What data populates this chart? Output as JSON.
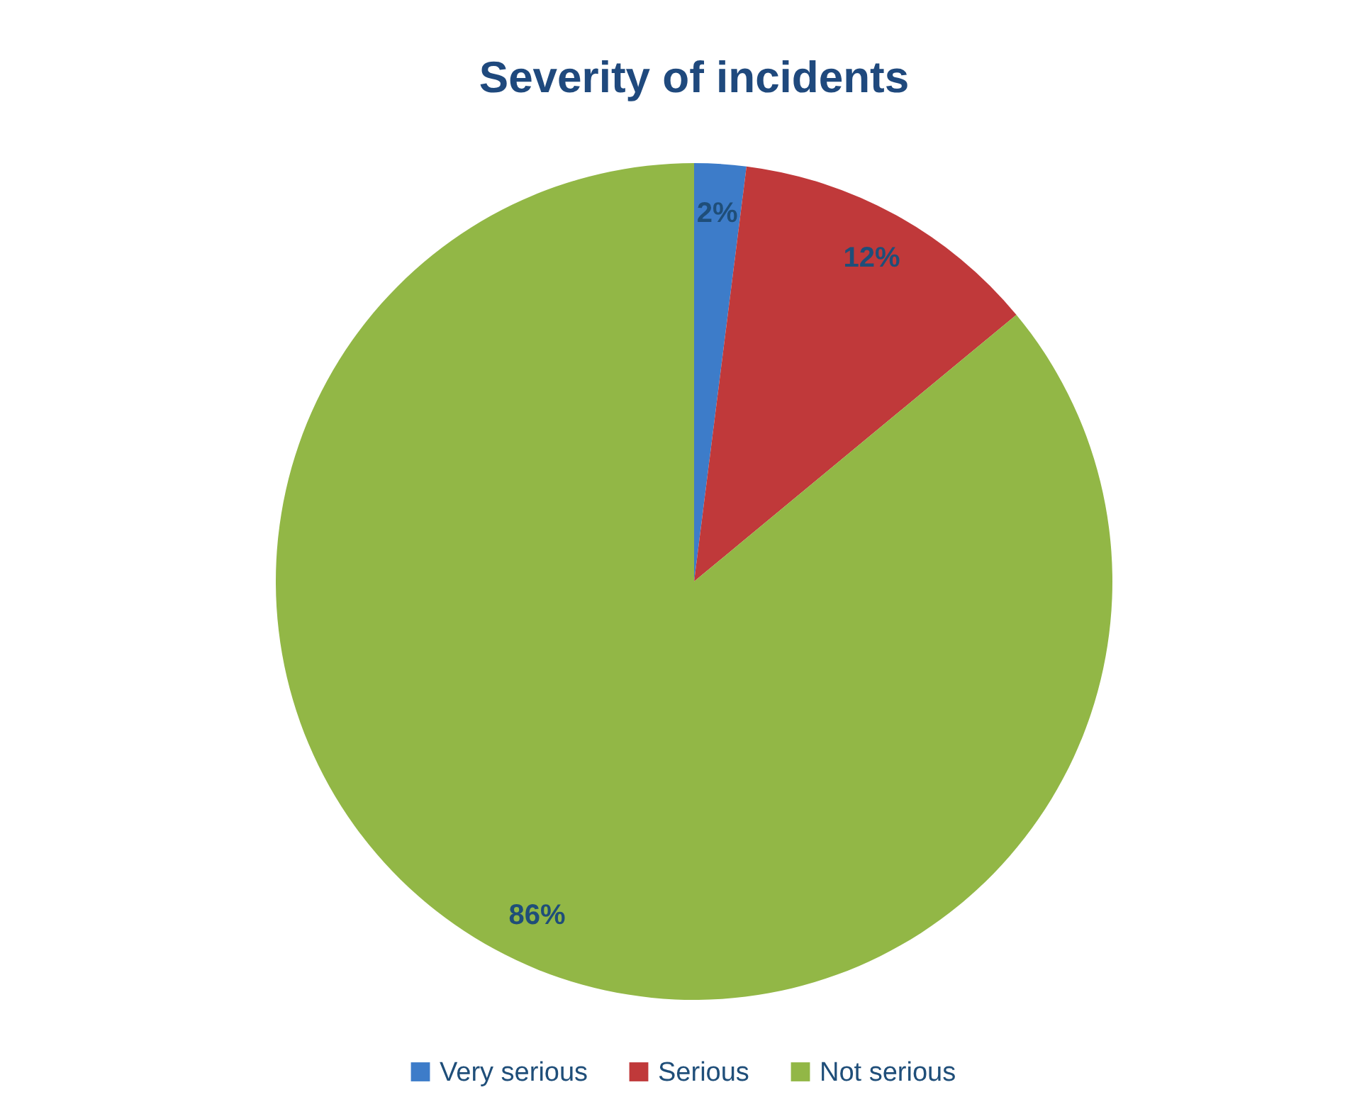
{
  "chart_data": {
    "type": "pie",
    "title": "Severity of incidents",
    "categories": [
      "Very serious",
      "Serious",
      "Not serious"
    ],
    "values": [
      2,
      12,
      86
    ],
    "colors": [
      "#3d7cc9",
      "#c0393a",
      "#92b746"
    ],
    "value_labels": [
      "2%",
      "12%",
      "86%"
    ],
    "legend": "bottom"
  }
}
